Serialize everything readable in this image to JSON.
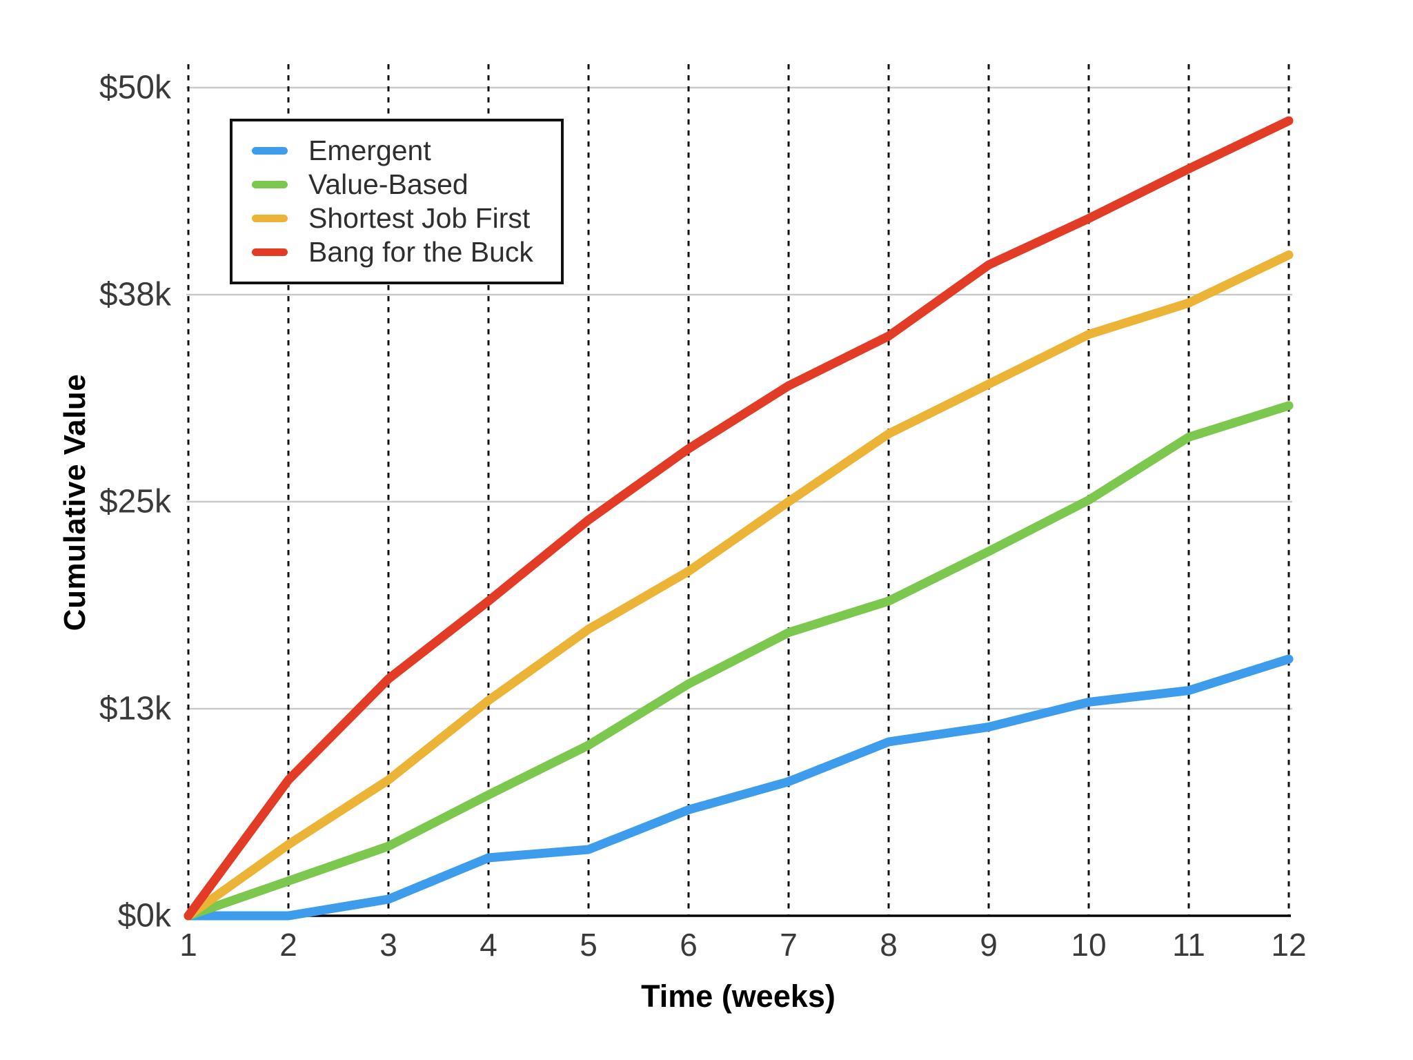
{
  "chart_data": {
    "type": "line",
    "title": "",
    "xlabel": "Time (weeks)",
    "ylabel": "Cumulative Value",
    "x": [
      1,
      2,
      3,
      4,
      5,
      6,
      7,
      8,
      9,
      10,
      11,
      12
    ],
    "x_tick_labels": [
      "1",
      "2",
      "3",
      "4",
      "5",
      "6",
      "7",
      "8",
      "9",
      "10",
      "11",
      "12"
    ],
    "xlim": [
      1,
      12
    ],
    "ylim": [
      0,
      50
    ],
    "y_unit": "$k",
    "y_ticks": [
      {
        "value": 0,
        "label": "$0k"
      },
      {
        "value": 12.5,
        "label": "$13k"
      },
      {
        "value": 25,
        "label": "$25k"
      },
      {
        "value": 37.5,
        "label": "$38k"
      },
      {
        "value": 50,
        "label": "$50k"
      }
    ],
    "grid": {
      "horizontal_style": "solid",
      "horizontal_color": "#c9c9c9",
      "vertical_style": "dotted",
      "vertical_color": "#111111"
    },
    "legend_position": "top-left",
    "series": [
      {
        "name": "Emergent",
        "color": "#3E9CED",
        "values": [
          0,
          0,
          1.0,
          3.5,
          4.0,
          6.4,
          8.1,
          10.5,
          11.4,
          12.9,
          13.6,
          15.5
        ]
      },
      {
        "name": "Value-Based",
        "color": "#7CC84E",
        "values": [
          0,
          2.1,
          4.2,
          7.3,
          10.3,
          14.0,
          17.1,
          19.0,
          22.0,
          25.1,
          28.9,
          30.8
        ]
      },
      {
        "name": "Shortest Job First",
        "color": "#EBB437",
        "values": [
          0,
          4.3,
          8.2,
          13.0,
          17.3,
          20.8,
          25.0,
          29.1,
          32.1,
          35.1,
          37.0,
          39.9
        ]
      },
      {
        "name": "Bang for the Buck",
        "color": "#E23B26",
        "values": [
          0,
          8.2,
          14.3,
          19.0,
          23.9,
          28.2,
          32.0,
          35.0,
          39.3,
          42.1,
          45.1,
          48.0
        ]
      }
    ]
  }
}
